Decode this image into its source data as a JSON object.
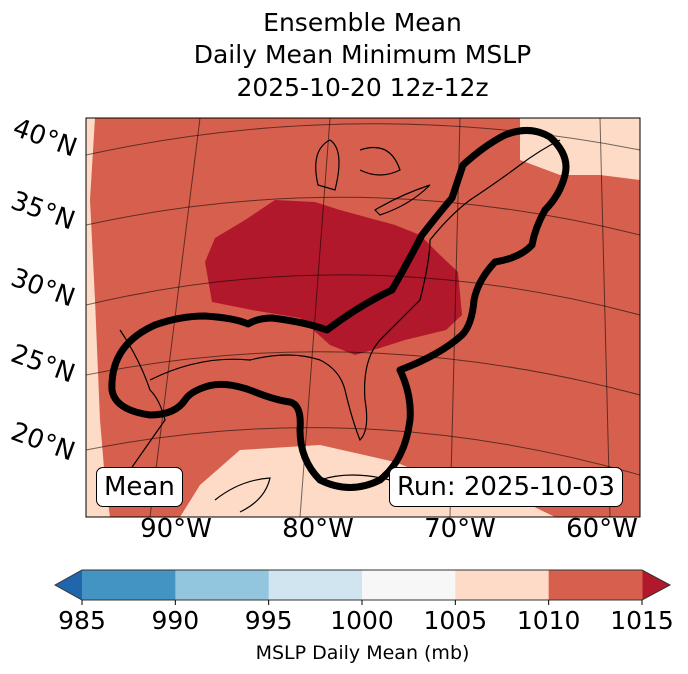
{
  "title_lines": [
    "Ensemble Mean",
    "Daily Mean Minimum MSLP",
    "2025-10-20 12z-12z"
  ],
  "lat_labels": [
    "40°N",
    "35°N",
    "30°N",
    "25°N",
    "20°N"
  ],
  "lon_labels": [
    "90°W",
    "80°W",
    "70°W",
    "60°W"
  ],
  "mean_label": "Mean",
  "run_label": "Run: 2025-10-03",
  "colorbar": {
    "label": "MSLP Daily Mean (mb)",
    "ticks": [
      "985",
      "990",
      "995",
      "1000",
      "1005",
      "1010",
      "1015"
    ],
    "colors": [
      "#4393c3",
      "#92c5de",
      "#d1e5f0",
      "#f7f7f7",
      "#fddbc7",
      "#d6604d"
    ],
    "under_color": "#2166ac",
    "over_color": "#b2182b"
  },
  "map_colors": {
    "low": "#fddbc7",
    "mid": "#d6604d",
    "high": "#b2182b",
    "contour": "#000000"
  }
}
